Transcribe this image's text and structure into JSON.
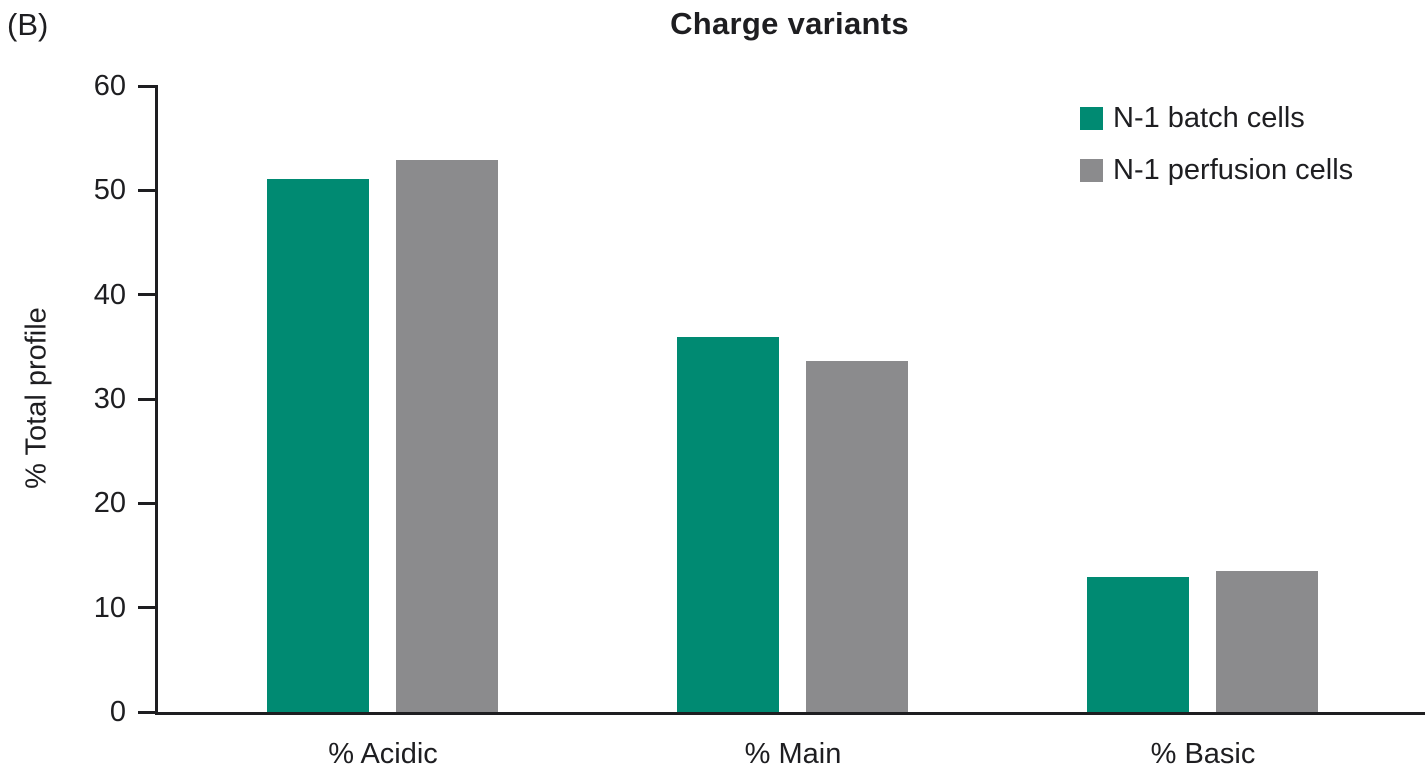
{
  "figure": {
    "panel_label": "(B)"
  },
  "chart_data": {
    "type": "bar",
    "title": "Charge variants",
    "xlabel": "",
    "ylabel": "% Total profile",
    "categories": [
      "% Acidic",
      "% Main",
      "% Basic"
    ],
    "series": [
      {
        "name": "N-1 batch cells",
        "color": "#008A72",
        "values": [
          51.1,
          35.9,
          12.9
        ]
      },
      {
        "name": "N-1 perfusion cells",
        "color": "#8B8B8D",
        "values": [
          52.9,
          33.6,
          13.5
        ]
      }
    ],
    "ylim": [
      0,
      60
    ],
    "yticks": [
      0,
      10,
      20,
      30,
      40,
      50,
      60
    ],
    "grid": false,
    "legend_position": "top-right",
    "axis_color": "#1E1E21",
    "text_color": "#1E1E21"
  }
}
